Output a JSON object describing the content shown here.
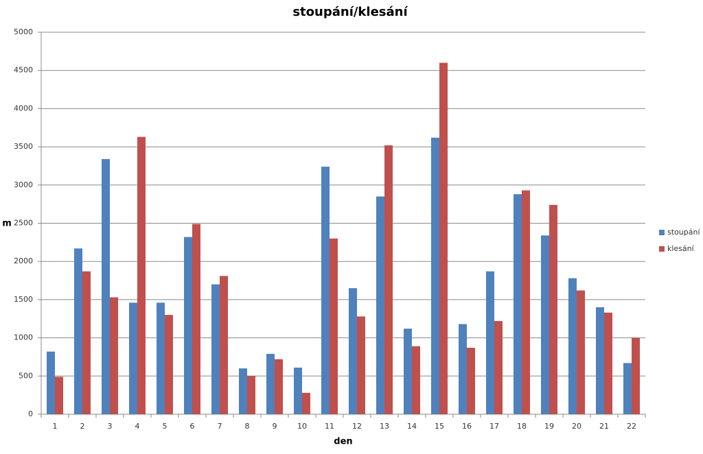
{
  "chart_data": {
    "type": "bar",
    "title": "stoupání/klesání",
    "x_label": "den",
    "y_label": "m",
    "categories": [
      "1",
      "2",
      "3",
      "4",
      "5",
      "6",
      "7",
      "8",
      "9",
      "10",
      "11",
      "12",
      "13",
      "14",
      "15",
      "16",
      "17",
      "18",
      "19",
      "20",
      "21",
      "22"
    ],
    "series": [
      {
        "name": "stoupání",
        "color": "#4f81bd",
        "values": [
          820,
          2170,
          3340,
          1460,
          1460,
          2320,
          1700,
          600,
          790,
          610,
          3240,
          1650,
          2850,
          1120,
          3620,
          1180,
          1870,
          2880,
          2340,
          1780,
          1400,
          670
        ]
      },
      {
        "name": "klesání",
        "color": "#c0504d",
        "values": [
          490,
          1870,
          1530,
          3630,
          1300,
          2490,
          1810,
          500,
          720,
          280,
          2300,
          1280,
          3520,
          890,
          4600,
          870,
          1220,
          2930,
          2740,
          1620,
          1330,
          1000
        ]
      }
    ],
    "ylim": [
      0,
      5000
    ],
    "yticks": [
      0,
      500,
      1000,
      1500,
      2000,
      2500,
      3000,
      3500,
      4000,
      4500,
      5000
    ],
    "grid": true,
    "legend": "right"
  }
}
